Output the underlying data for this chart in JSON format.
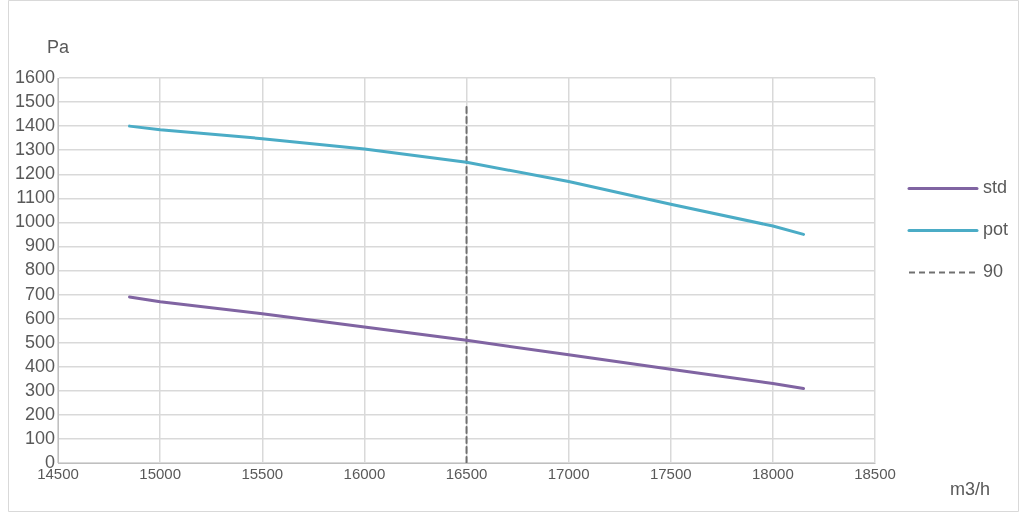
{
  "chart_data": {
    "type": "line",
    "xlabel": "m3/h",
    "ylabel": "Pa",
    "x": [
      14850,
      15000,
      15500,
      16000,
      16500,
      17000,
      17500,
      18000,
      18150
    ],
    "series": [
      {
        "name": "std",
        "color": "#8064a2",
        "values": [
          690,
          670,
          620,
          565,
          510,
          450,
          390,
          330,
          310
        ]
      },
      {
        "name": "pot",
        "color": "#4bacc6",
        "values": [
          1400,
          1385,
          1348,
          1305,
          1250,
          1170,
          1075,
          985,
          950
        ]
      },
      {
        "name": "90",
        "type": "line",
        "color": "#707070",
        "line_style": "dashed",
        "x": [
          16500,
          16500
        ],
        "values": [
          0,
          1480
        ]
      }
    ],
    "xlim": [
      14500,
      18500
    ],
    "xticks": [
      14500,
      15000,
      15500,
      16000,
      16500,
      17000,
      17500,
      18000,
      18500
    ],
    "ylim": [
      0,
      1600
    ],
    "yticks": [
      0,
      100,
      200,
      300,
      400,
      500,
      600,
      700,
      800,
      900,
      1000,
      1100,
      1200,
      1300,
      1400,
      1500,
      1600
    ],
    "grid": true,
    "legend": "right",
    "marker": "none",
    "line_style": "solid"
  }
}
